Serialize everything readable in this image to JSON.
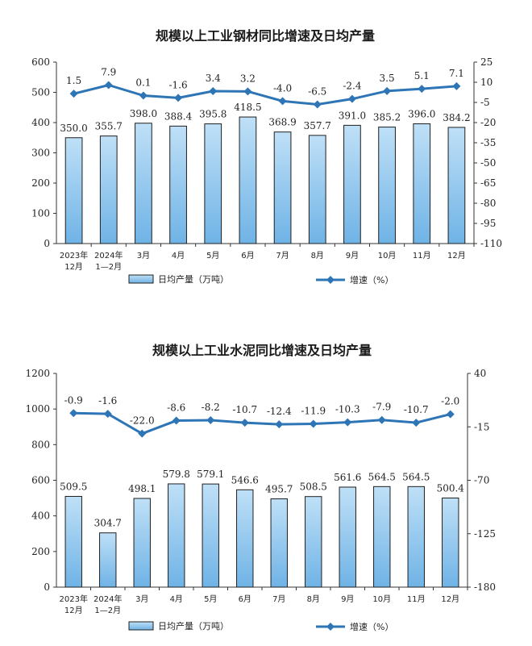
{
  "chart_data": [
    {
      "type": "bar+line",
      "title": "规模以上工业钢材同比增速及日均产量",
      "categories": [
        [
          "2023年",
          "12月"
        ],
        [
          "2024年",
          "1—2月"
        ],
        [
          "3月"
        ],
        [
          "4月"
        ],
        [
          "5月"
        ],
        [
          "6月"
        ],
        [
          "7月"
        ],
        [
          "8月"
        ],
        [
          "9月"
        ],
        [
          "10月"
        ],
        [
          "11月"
        ],
        [
          "12月"
        ]
      ],
      "series": [
        {
          "name": "日均产量（万吨）",
          "type": "bar",
          "axis": "left",
          "values": [
            350.0,
            355.7,
            398.0,
            388.4,
            395.8,
            418.5,
            368.9,
            357.7,
            391.0,
            385.2,
            396.0,
            384.2
          ],
          "labels": [
            "350.0",
            "355.7",
            "398.0",
            "388.4",
            "395.8",
            "418.5",
            "368.9",
            "357.7",
            "391.0",
            "385.2",
            "396.0",
            "384.2"
          ]
        },
        {
          "name": "增速（%）",
          "type": "line",
          "axis": "right",
          "values": [
            1.5,
            7.9,
            0.1,
            -1.6,
            3.4,
            3.2,
            -4.0,
            -6.5,
            -2.4,
            3.5,
            5.1,
            7.1
          ],
          "labels": [
            "1.5",
            "7.9",
            "0.1",
            "-1.6",
            "3.4",
            "3.2",
            "-4.0",
            "-6.5",
            "-2.4",
            "3.5",
            "5.1",
            "7.1"
          ]
        }
      ],
      "left_axis": {
        "min": 0,
        "max": 600,
        "ticks": [
          "0",
          "100",
          "200",
          "300",
          "400",
          "500",
          "600"
        ]
      },
      "right_axis": {
        "min": -110,
        "max": 25,
        "ticks": [
          "25",
          "10",
          "-5",
          "-20",
          "-35",
          "-50",
          "-65",
          "-80",
          "-95",
          "-110"
        ]
      },
      "legend_position": "bottom"
    },
    {
      "type": "bar+line",
      "title": "规模以上工业水泥同比增速及日均产量",
      "categories": [
        [
          "2023年",
          "12月"
        ],
        [
          "2024年",
          "1—2月"
        ],
        [
          "3月"
        ],
        [
          "4月"
        ],
        [
          "5月"
        ],
        [
          "6月"
        ],
        [
          "7月"
        ],
        [
          "8月"
        ],
        [
          "9月"
        ],
        [
          "10月"
        ],
        [
          "11月"
        ],
        [
          "12月"
        ]
      ],
      "series": [
        {
          "name": "日均产量（万吨）",
          "type": "bar",
          "axis": "left",
          "values": [
            509.5,
            304.7,
            498.1,
            579.8,
            579.1,
            546.6,
            495.7,
            508.5,
            561.6,
            564.5,
            564.5,
            500.4
          ],
          "labels": [
            "509.5",
            "304.7",
            "498.1",
            "579.8",
            "579.1",
            "546.6",
            "495.7",
            "508.5",
            "561.6",
            "564.5",
            "564.5",
            "500.4"
          ]
        },
        {
          "name": "增速（%）",
          "type": "line",
          "axis": "right",
          "values": [
            -0.9,
            -1.6,
            -22.0,
            -8.6,
            -8.2,
            -10.7,
            -12.4,
            -11.9,
            -10.3,
            -7.9,
            -10.7,
            -2.0
          ],
          "labels": [
            "-0.9",
            "-1.6",
            "-22.0",
            "-8.6",
            "-8.2",
            "-10.7",
            "-12.4",
            "-11.9",
            "-10.3",
            "-7.9",
            "-10.7",
            "-2.0"
          ]
        }
      ],
      "left_axis": {
        "min": 0,
        "max": 1200,
        "ticks": [
          "0",
          "200",
          "400",
          "600",
          "800",
          "1000",
          "1200"
        ]
      },
      "right_axis": {
        "min": -180,
        "max": 40,
        "ticks": [
          "40",
          "-15",
          "-70",
          "-125",
          "-180"
        ]
      },
      "legend_position": "bottom"
    }
  ],
  "colors": {
    "bar_fill_top": "#bfe0f7",
    "bar_fill_bottom": "#6fb3e6",
    "bar_stroke": "#1f1f1f",
    "line": "#2e75b6",
    "axis": "#333333"
  }
}
